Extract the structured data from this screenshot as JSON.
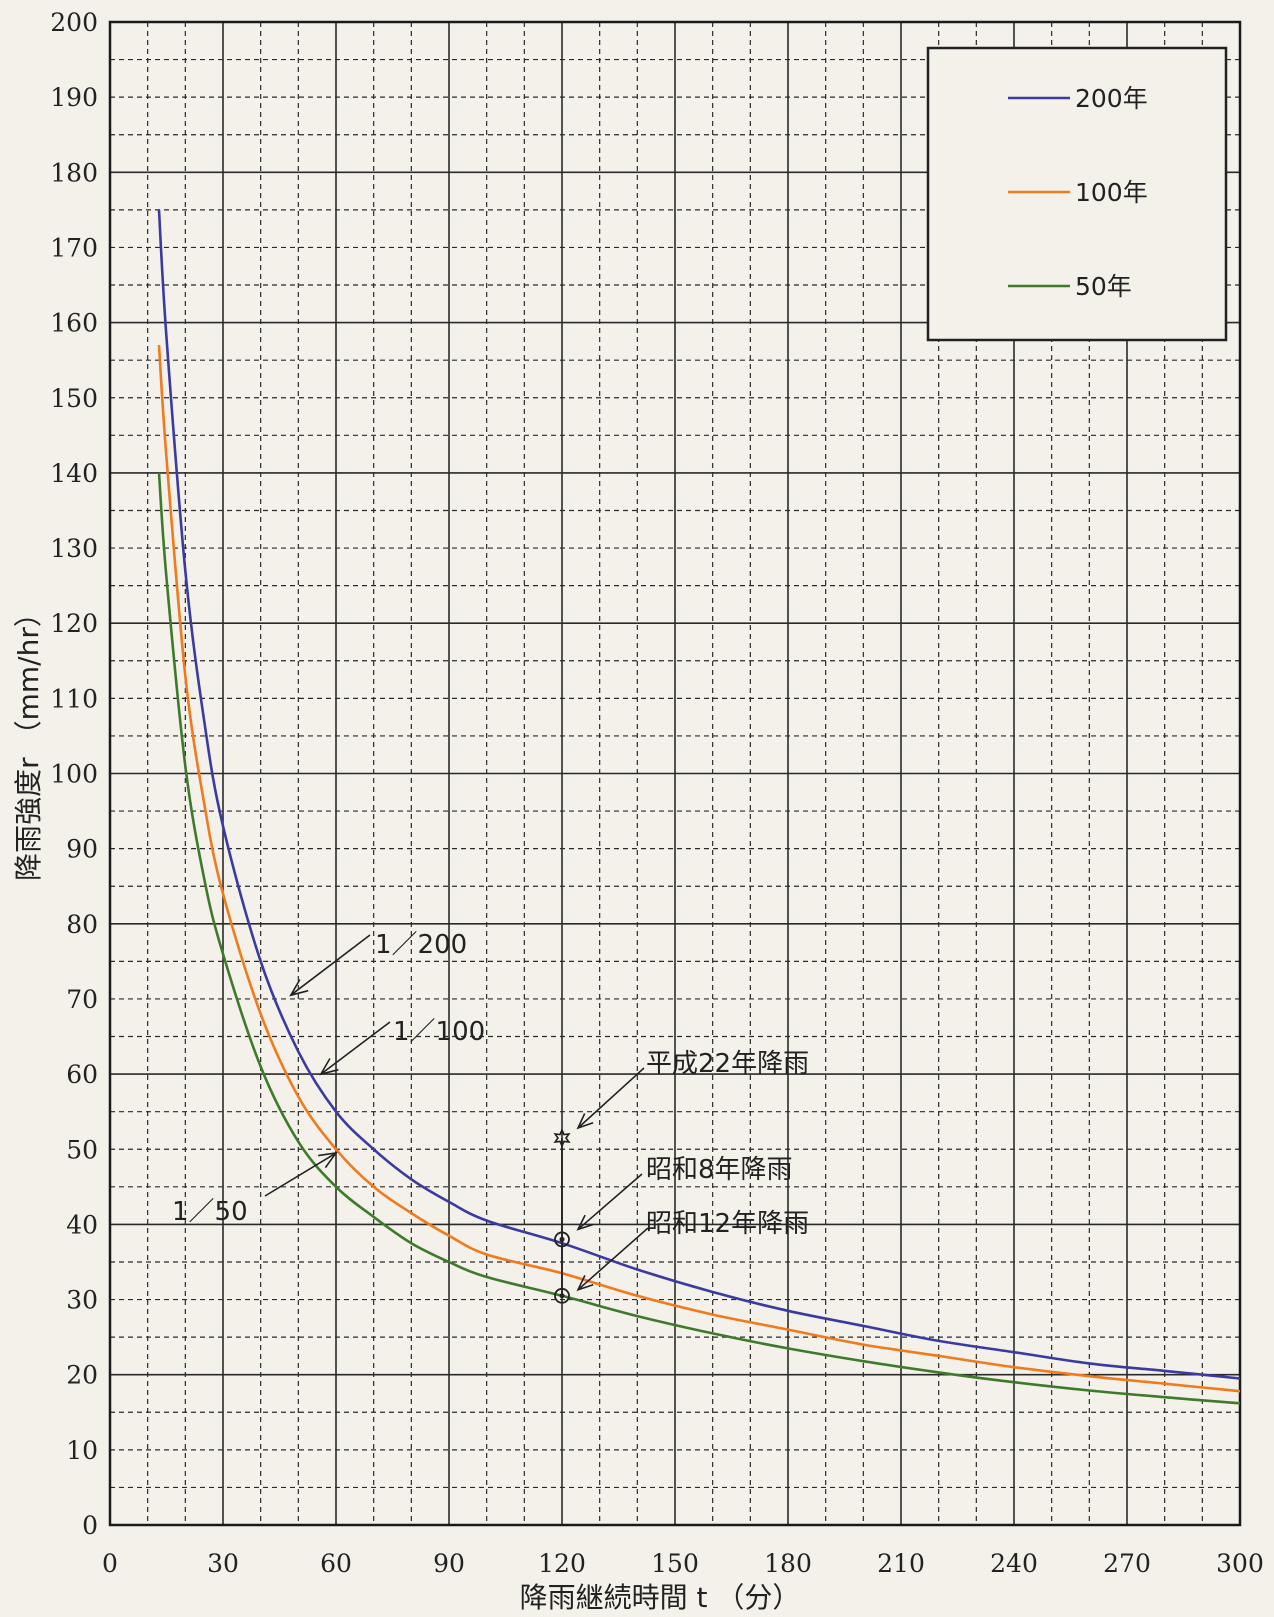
{
  "chart_data": {
    "type": "line",
    "title": "",
    "xlabel": "降雨継続時間 t （分）",
    "ylabel": "降雨強度r （mm/hr）",
    "xlim": [
      0,
      300
    ],
    "ylim": [
      0,
      200
    ],
    "x_ticks": [
      "0",
      "30",
      "60",
      "90",
      "120",
      "150",
      "180",
      "210",
      "240",
      "270",
      "300"
    ],
    "y_ticks": [
      "0",
      "10",
      "20",
      "30",
      "40",
      "50",
      "60",
      "70",
      "80",
      "90",
      "100",
      "110",
      "120",
      "130",
      "140",
      "150",
      "160",
      "170",
      "180",
      "190",
      "200"
    ],
    "grid": "major solid every 30 min / 20 mm/hr, minor dashed every 10 min / 5 mm/hr",
    "legend_position": "top-right",
    "series": [
      {
        "name": "200年",
        "color": "#3a3aa0",
        "x": [
          13,
          15,
          20,
          25,
          30,
          40,
          50,
          60,
          70,
          80,
          90,
          100,
          120,
          140,
          160,
          180,
          200,
          220,
          240,
          260,
          280,
          300
        ],
        "values": [
          175,
          158,
          127,
          107,
          93,
          75,
          63,
          55,
          50,
          46,
          43,
          40.5,
          37.5,
          34,
          31,
          28.5,
          26.5,
          24.5,
          23,
          21.5,
          20.5,
          19.5
        ]
      },
      {
        "name": "100年",
        "color": "#f07a1c",
        "x": [
          13,
          15,
          20,
          25,
          30,
          40,
          50,
          60,
          70,
          80,
          90,
          100,
          120,
          140,
          160,
          180,
          200,
          220,
          240,
          260,
          280,
          300
        ],
        "values": [
          157,
          142,
          113,
          96,
          84,
          68,
          57,
          50,
          45,
          41.5,
          38.5,
          36,
          33.5,
          30.5,
          28,
          26,
          24,
          22.5,
          21,
          19.8,
          18.8,
          17.8
        ]
      },
      {
        "name": "50年",
        "color": "#3d7a2a",
        "x": [
          13,
          15,
          20,
          25,
          30,
          40,
          50,
          60,
          70,
          80,
          90,
          100,
          120,
          140,
          160,
          180,
          200,
          220,
          240,
          260,
          280,
          300
        ],
        "values": [
          140,
          126,
          101,
          86,
          76,
          61,
          51,
          45,
          41,
          37.5,
          35,
          33,
          30.5,
          27.8,
          25.5,
          23.5,
          21.8,
          20.3,
          19,
          17.9,
          17,
          16.2
        ]
      }
    ],
    "events": [
      {
        "label": "平成22年降雨",
        "x": 120,
        "y": 51.5,
        "marker": "star"
      },
      {
        "label": "昭和8年降雨",
        "x": 120,
        "y": 38,
        "marker": "circle"
      },
      {
        "label": "昭和12年降雨",
        "x": 120,
        "y": 30.5,
        "marker": "circle"
      }
    ],
    "curve_labels": [
      {
        "label": "1／200",
        "x": 48,
        "y": 70.5
      },
      {
        "label": "1／100",
        "x": 56,
        "y": 60
      },
      {
        "label": "1／50",
        "x": 60,
        "y": 49.5
      }
    ]
  }
}
